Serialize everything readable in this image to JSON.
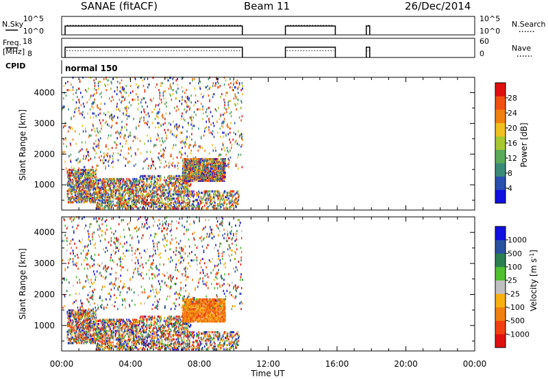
{
  "header": {
    "station": "SANAE (fitACF)",
    "beam": "Beam 11",
    "date": "26/Dec/2014"
  },
  "strips": {
    "nsky_label": "N.Sky",
    "nsearch_label": "N.Search",
    "nsky_ticks": [
      "10^5",
      "10^0"
    ],
    "nsky_right_ticks": [
      "10^5",
      "10^0"
    ],
    "freq_label": "Freq.",
    "freq_unit": "[MHz]",
    "freq_ticks": [
      "18",
      "8"
    ],
    "nave_label": "Nave",
    "nave_ticks": [
      "60",
      "0"
    ],
    "cpid_label": "CPID",
    "cpid_value": "normal 150"
  },
  "colors": {
    "power": [
      "#1010e0",
      "#2a4fb0",
      "#3a8a7a",
      "#5aaa5a",
      "#a8c832",
      "#f0c020",
      "#f08010",
      "#f05010",
      "#e01010"
    ],
    "velocity": [
      "#e01010",
      "#f04010",
      "#f08010",
      "#f8b010",
      "#c0c0c0",
      "#50c030",
      "#2a8050",
      "#2a50a0",
      "#1010e0"
    ]
  },
  "chart_data": [
    {
      "type": "heatmap",
      "name": "power",
      "ylabel": "Slant Range [km]",
      "ylim": [
        180,
        4500
      ],
      "yticks": [
        "4000",
        "3000",
        "2000",
        "1000"
      ],
      "xlim": [
        0,
        24
      ],
      "colorbar_label": "Power [dB]",
      "colorbar_ticks": [
        "28",
        "24",
        "20",
        "16",
        "12",
        "8",
        "4"
      ],
      "colorbar_range": [
        0,
        32
      ],
      "clusters": [
        {
          "t": [
            0.3,
            2.0
          ],
          "r": [
            400,
            1500
          ],
          "level": "mix",
          "density": 0.35
        },
        {
          "t": [
            2.0,
            4.5
          ],
          "r": [
            200,
            1200
          ],
          "level": "mix",
          "density": 0.3
        },
        {
          "t": [
            4.5,
            7.5
          ],
          "r": [
            200,
            1300
          ],
          "level": "mix",
          "density": 0.25
        },
        {
          "t": [
            7.5,
            10.3
          ],
          "r": [
            200,
            800
          ],
          "level": "mix",
          "density": 0.2
        },
        {
          "t": [
            7.0,
            9.5
          ],
          "r": [
            1100,
            1850
          ],
          "level": "mix",
          "density": 0.55
        },
        {
          "t": [
            0,
            10.5
          ],
          "r": [
            1500,
            4500
          ],
          "level": "mix",
          "density": 0.03
        }
      ]
    },
    {
      "type": "heatmap",
      "name": "velocity",
      "ylabel": "Slant Range [km]",
      "ylim": [
        180,
        4500
      ],
      "yticks": [
        "4000",
        "3000",
        "2000",
        "1000"
      ],
      "xlim": [
        0,
        24
      ],
      "colorbar_label": "Velocity [m s^-1]",
      "colorbar_ticks": [
        "1000",
        "500",
        "100",
        "25",
        "-25",
        "-100",
        "-500",
        "-1000"
      ],
      "clusters": [
        {
          "t": [
            0.3,
            2.0
          ],
          "r": [
            400,
            1500
          ],
          "level": "mix",
          "density": 0.35
        },
        {
          "t": [
            2.0,
            4.5
          ],
          "r": [
            200,
            1200
          ],
          "level": "mix",
          "density": 0.3
        },
        {
          "t": [
            4.5,
            7.5
          ],
          "r": [
            200,
            1300
          ],
          "level": "mix",
          "density": 0.25
        },
        {
          "t": [
            7.5,
            10.3
          ],
          "r": [
            200,
            800
          ],
          "level": "mix",
          "density": 0.2
        },
        {
          "t": [
            7.0,
            9.5
          ],
          "r": [
            1100,
            1850
          ],
          "level": "neg",
          "density": 0.55
        },
        {
          "t": [
            0,
            10.5
          ],
          "r": [
            1500,
            4500
          ],
          "level": "mix",
          "density": 0.03
        }
      ]
    }
  ],
  "operation_intervals_ut": [
    [
      0.2,
      10.5
    ],
    [
      13.0,
      15.9
    ],
    [
      17.7,
      17.9
    ]
  ],
  "xaxis": {
    "ticks": [
      "00:00",
      "04:00",
      "08:00",
      "12:00",
      "16:00",
      "20:00",
      "00:00"
    ],
    "tick_values": [
      0,
      4,
      8,
      12,
      16,
      20,
      24
    ],
    "label": "Time UT"
  }
}
